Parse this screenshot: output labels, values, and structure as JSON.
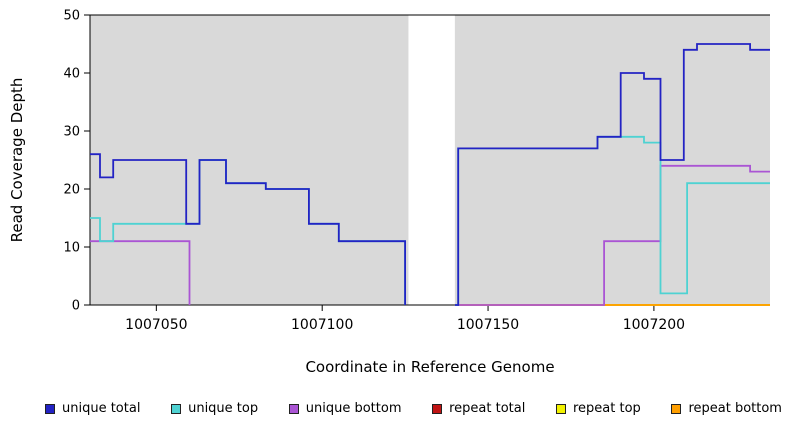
{
  "chart_data": {
    "type": "line",
    "subtype": "step",
    "title": "",
    "xlabel": "Coordinate in Reference Genome",
    "ylabel": "Read Coverage Depth",
    "x_domain": [
      1007030,
      1007235
    ],
    "y_domain": [
      0,
      50
    ],
    "x_ticks": [
      1007050,
      1007100,
      1007150,
      1007200
    ],
    "y_ticks": [
      0,
      10,
      20,
      30,
      40,
      50
    ],
    "grid": "off",
    "panel_color": "#d9d9d9",
    "panels": [
      [
        1007030,
        1007126
      ],
      [
        1007140,
        1007235
      ]
    ],
    "gap_region": [
      1007126,
      1007140
    ],
    "legend_position": "bottom",
    "legend_order": [
      "unique total",
      "unique top",
      "unique bottom",
      "repeat total",
      "repeat top",
      "repeat bottom"
    ],
    "series": [
      {
        "name": "repeat total",
        "color": "#c01414",
        "points": [
          [
            1007030,
            0
          ],
          [
            1007126,
            null
          ],
          [
            1007140,
            0
          ],
          [
            1007235,
            0
          ]
        ]
      },
      {
        "name": "repeat top",
        "color": "#f2f200",
        "points": [
          [
            1007030,
            0
          ],
          [
            1007126,
            null
          ],
          [
            1007140,
            0
          ],
          [
            1007235,
            0
          ]
        ]
      },
      {
        "name": "repeat bottom",
        "color": "#ff9f00",
        "points": [
          [
            1007030,
            0
          ],
          [
            1007126,
            null
          ],
          [
            1007140,
            0
          ],
          [
            1007235,
            0
          ]
        ]
      },
      {
        "name": "unique bottom",
        "color": "#aa55d4",
        "points": [
          [
            1007030,
            11
          ],
          [
            1007060,
            0
          ],
          [
            1007126,
            null
          ],
          [
            1007140,
            0
          ],
          [
            1007185,
            11
          ],
          [
            1007202,
            24
          ],
          [
            1007229,
            23
          ],
          [
            1007235,
            23
          ]
        ]
      },
      {
        "name": "unique top",
        "color": "#4ed2d2",
        "points": [
          [
            1007030,
            15
          ],
          [
            1007033,
            11
          ],
          [
            1007037,
            14
          ],
          [
            1007063,
            25
          ],
          [
            1007071,
            21
          ],
          [
            1007083,
            20
          ],
          [
            1007096,
            14
          ],
          [
            1007105,
            11
          ],
          [
            1007125,
            0
          ],
          [
            1007126,
            null
          ],
          [
            1007140,
            0
          ],
          [
            1007141,
            27
          ],
          [
            1007183,
            29
          ],
          [
            1007197,
            28
          ],
          [
            1007202,
            2
          ],
          [
            1007210,
            21
          ],
          [
            1007235,
            21
          ]
        ]
      },
      {
        "name": "unique total",
        "color": "#2323c4",
        "points": [
          [
            1007030,
            26
          ],
          [
            1007033,
            22
          ],
          [
            1007037,
            25
          ],
          [
            1007059,
            14
          ],
          [
            1007063,
            25
          ],
          [
            1007071,
            21
          ],
          [
            1007083,
            20
          ],
          [
            1007096,
            14
          ],
          [
            1007105,
            11
          ],
          [
            1007125,
            0
          ],
          [
            1007126,
            null
          ],
          [
            1007140,
            0
          ],
          [
            1007141,
            27
          ],
          [
            1007183,
            29
          ],
          [
            1007190,
            40
          ],
          [
            1007197,
            39
          ],
          [
            1007202,
            25
          ],
          [
            1007209,
            44
          ],
          [
            1007213,
            45
          ],
          [
            1007229,
            44
          ],
          [
            1007235,
            44
          ]
        ]
      }
    ]
  }
}
